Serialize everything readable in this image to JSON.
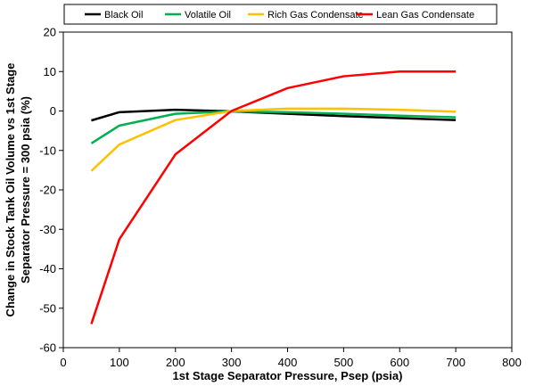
{
  "chart_data": {
    "type": "line",
    "title": "",
    "xlabel": "1st Stage Separator Pressure, Psep (psia)",
    "ylabel": "Change in Stock Tank Oil Volume vs 1st Stage Separator Pressure = 300 psia (%)",
    "ylabel_lines": [
      "Change in Stock Tank Oil Volume vs 1st Stage",
      "Separator Pressure = 300 psia (%)"
    ],
    "xlim": [
      0,
      800
    ],
    "ylim": [
      -60,
      20
    ],
    "xticks": [
      0,
      100,
      200,
      300,
      400,
      500,
      600,
      700,
      800
    ],
    "yticks": [
      -60,
      -50,
      -40,
      -30,
      -20,
      -10,
      0,
      10,
      20
    ],
    "grid": false,
    "legend_position": "top",
    "x": [
      50,
      100,
      200,
      300,
      400,
      500,
      600,
      700
    ],
    "series": [
      {
        "name": "Black Oil",
        "color": "#000000",
        "values": [
          -2.4,
          -0.3,
          0.3,
          -0.1,
          -0.7,
          -1.3,
          -1.8,
          -2.3
        ]
      },
      {
        "name": "Volatile Oil",
        "color": "#00b050",
        "values": [
          -8.2,
          -3.7,
          -0.7,
          -0.1,
          -0.3,
          -0.7,
          -1.2,
          -1.6
        ]
      },
      {
        "name": "Rich Gas Condensate",
        "color": "#ffc000",
        "values": [
          -15.2,
          -8.5,
          -2.3,
          0.0,
          0.6,
          0.6,
          0.3,
          -0.2
        ]
      },
      {
        "name": "Lean Gas Condensate",
        "color": "#ff0000",
        "values": [
          -54.0,
          -32.5,
          -11.0,
          0.0,
          5.8,
          8.8,
          10.0,
          10.0
        ]
      }
    ]
  }
}
